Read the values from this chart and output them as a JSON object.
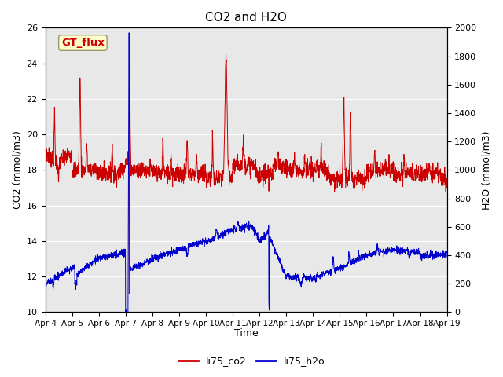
{
  "title": "CO2 and H2O",
  "xlabel": "Time",
  "ylabel_left": "CO2 (mmol/m3)",
  "ylabel_right": "H2O (mmol/m3)",
  "annotation": "GT_flux",
  "annotation_color": "#cc0000",
  "annotation_bg": "#ffffcc",
  "annotation_border": "#aaaaaa",
  "left_ylim": [
    10,
    26
  ],
  "right_ylim": [
    0,
    2000
  ],
  "left_yticks": [
    10,
    12,
    14,
    16,
    18,
    20,
    22,
    24,
    26
  ],
  "right_yticks": [
    0,
    200,
    400,
    600,
    800,
    1000,
    1200,
    1400,
    1600,
    1800,
    2000
  ],
  "xtick_labels": [
    "Apr 4",
    "Apr 5",
    "Apr 6",
    "Apr 7",
    "Apr 8",
    "Apr 9",
    "Apr 10",
    "Apr 11",
    "Apr 12",
    "Apr 13",
    "Apr 14",
    "Apr 15",
    "Apr 16",
    "Apr 17",
    "Apr 18",
    "Apr 19"
  ],
  "plot_bg_color": "#e8e8e8",
  "grid_color": "#ffffff",
  "co2_color": "#cc0000",
  "h2o_color": "#0000cc",
  "legend_co2": "li75_co2",
  "legend_h2o": "li75_h2o"
}
